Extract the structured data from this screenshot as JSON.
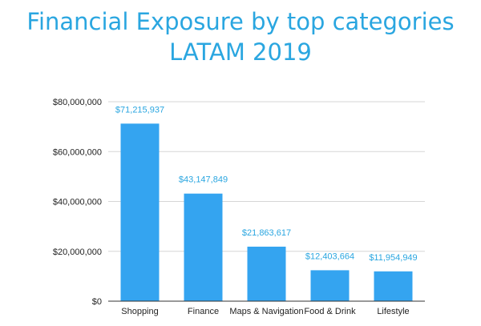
{
  "colors": {
    "title": "#2aa6e0",
    "bar": "#34a4f0",
    "data_label": "#2aa6e0",
    "grid": "#d6d6d6",
    "axis": "#333333"
  },
  "chart_data": {
    "type": "bar",
    "title": "Financial Exposure by top categories",
    "subtitle": "LATAM 2019",
    "categories": [
      "Shopping",
      "Finance",
      "Maps & Navigation",
      "Food & Drink",
      "Lifestyle"
    ],
    "values": [
      71215937,
      43147849,
      21863617,
      12403664,
      11954949
    ],
    "data_labels": [
      "$71,215,937",
      "$43,147,849",
      "$21,863,617",
      "$12,403,664",
      "$11,954,949"
    ],
    "ylim": [
      0,
      80000000
    ],
    "yticks": [
      0,
      20000000,
      40000000,
      60000000,
      80000000
    ],
    "ytick_labels": [
      "$0",
      "$20,000,000",
      "$40,000,000",
      "$60,000,000",
      "$80,000,000"
    ],
    "grid": true,
    "legend": "none"
  }
}
